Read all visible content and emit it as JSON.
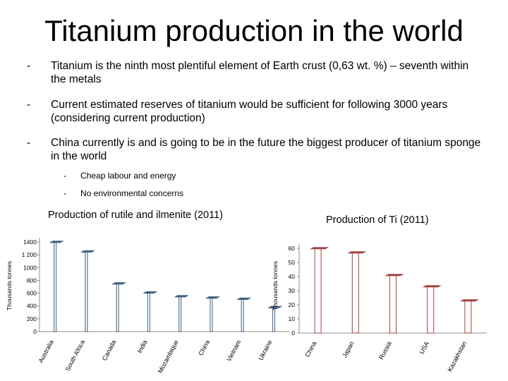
{
  "title": "Titanium production in the world",
  "bullets": [
    {
      "dash": "-",
      "text": "Titanium is the ninth most plentiful element of Earth crust (0,63 wt. %) – seventh within the metals"
    },
    {
      "dash": "-",
      "text": "Current estimated reserves of titanium would be sufficient for following 3000 years (considering current production)"
    },
    {
      "dash": "-",
      "text": "China currently is and is going to be in the future the biggest producer of titanium sponge in the world"
    }
  ],
  "sub_bullets": [
    {
      "dash": "-",
      "text": "Cheap labour and energy"
    },
    {
      "dash": "-",
      "text": "No environmental concerns"
    }
  ],
  "chart_data": [
    {
      "type": "bar",
      "title": "Production of rutile and ilmenite (2011)",
      "ylabel": "Thousands tonnes",
      "xlabel": "",
      "ylim": [
        0,
        1400
      ],
      "yticks": [
        0,
        200,
        400,
        600,
        800,
        1000,
        1200,
        1400
      ],
      "ytick_labels": [
        "0",
        "200",
        "400",
        "600",
        "800",
        "1000",
        "1 200",
        "1400"
      ],
      "categories": [
        "Australia",
        "South Africa",
        "Canada",
        "India",
        "Mozambique",
        "China",
        "Vietnam",
        "Ukraine"
      ],
      "values": [
        1400,
        1250,
        750,
        610,
        550,
        530,
        510,
        380
      ],
      "grid": false,
      "legend": "none",
      "color": "#3d5f80"
    },
    {
      "type": "bar",
      "title": "Production of Ti (2011)",
      "ylabel": "Thousands tonnes",
      "xlabel": "",
      "ylim": [
        0,
        60
      ],
      "yticks": [
        0,
        10,
        20,
        30,
        40,
        50,
        60
      ],
      "ytick_labels": [
        "0",
        "10",
        "20",
        "30",
        "40",
        "50",
        "60"
      ],
      "categories": [
        "China",
        "Japan",
        "Russia",
        "USA",
        "Kazakhstan"
      ],
      "values": [
        60,
        57,
        41,
        33,
        23
      ],
      "grid": false,
      "legend": "none",
      "color": "#a44240"
    }
  ]
}
